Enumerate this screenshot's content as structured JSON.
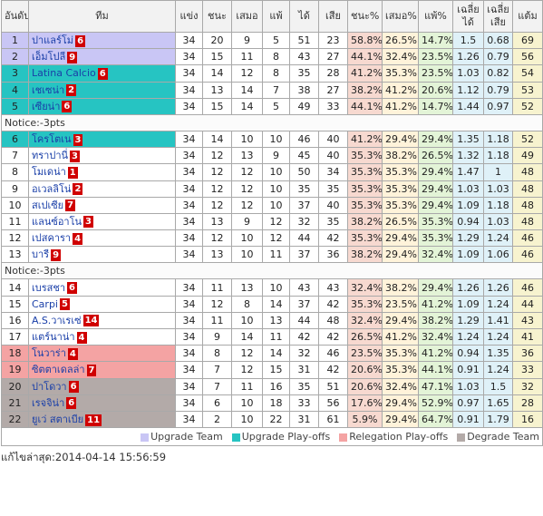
{
  "headers": {
    "rank": "อันดับ",
    "team": "ทีม",
    "played": "แข่ง",
    "won": "ชนะ",
    "drawn": "เสมอ",
    "lost": "แพ้",
    "gf": "ได้",
    "ga": "เสีย",
    "win_pct": "ชนะ%",
    "draw_pct": "เสมอ%",
    "loss_pct": "แพ้%",
    "avg_for": "เฉลี่ยได้",
    "avg_against": "เฉลี่ยเสีย",
    "points": "แต้ม"
  },
  "notice1": "Notice:-3pts",
  "notice2": "Notice:-3pts",
  "rows": [
    {
      "rank": "1",
      "team": "ปาแลร์โม่",
      "badge": "6",
      "p": "34",
      "w": "20",
      "d": "9",
      "l": "5",
      "gf": "51",
      "ga": "23",
      "wp": "58.8%",
      "dp": "26.5%",
      "lp": "14.7%",
      "af": "1.5",
      "aa": "0.68",
      "pts": "69",
      "zone": "upg"
    },
    {
      "rank": "2",
      "team": "เอ็มโปลี",
      "badge": "9",
      "p": "34",
      "w": "15",
      "d": "11",
      "l": "8",
      "gf": "43",
      "ga": "27",
      "wp": "44.1%",
      "dp": "32.4%",
      "lp": "23.5%",
      "af": "1.26",
      "aa": "0.79",
      "pts": "56",
      "zone": "upg"
    },
    {
      "rank": "3",
      "team": "Latina Calcio",
      "badge": "6",
      "p": "34",
      "w": "14",
      "d": "12",
      "l": "8",
      "gf": "35",
      "ga": "28",
      "wp": "41.2%",
      "dp": "35.3%",
      "lp": "23.5%",
      "af": "1.03",
      "aa": "0.82",
      "pts": "54",
      "zone": "pof"
    },
    {
      "rank": "4",
      "team": "เชเซน่า",
      "badge": "2",
      "p": "34",
      "w": "13",
      "d": "14",
      "l": "7",
      "gf": "38",
      "ga": "27",
      "wp": "38.2%",
      "dp": "41.2%",
      "lp": "20.6%",
      "af": "1.12",
      "aa": "0.79",
      "pts": "53",
      "zone": "pof"
    },
    {
      "rank": "5",
      "team": "เซียน่า",
      "badge": "6",
      "p": "34",
      "w": "15",
      "d": "14",
      "l": "5",
      "gf": "49",
      "ga": "33",
      "wp": "44.1%",
      "dp": "41.2%",
      "lp": "14.7%",
      "af": "1.44",
      "aa": "0.97",
      "pts": "52",
      "zone": "pof"
    },
    {
      "rank": "6",
      "team": "โครโตเน",
      "badge": "3",
      "p": "34",
      "w": "14",
      "d": "10",
      "l": "10",
      "gf": "46",
      "ga": "40",
      "wp": "41.2%",
      "dp": "29.4%",
      "lp": "29.4%",
      "af": "1.35",
      "aa": "1.18",
      "pts": "52",
      "zone": "pof"
    },
    {
      "rank": "7",
      "team": "ทราปานี่",
      "badge": "3",
      "p": "34",
      "w": "12",
      "d": "13",
      "l": "9",
      "gf": "45",
      "ga": "40",
      "wp": "35.3%",
      "dp": "38.2%",
      "lp": "26.5%",
      "af": "1.32",
      "aa": "1.18",
      "pts": "49",
      "zone": ""
    },
    {
      "rank": "8",
      "team": "โมเดน่า",
      "badge": "1",
      "p": "34",
      "w": "12",
      "d": "12",
      "l": "10",
      "gf": "50",
      "ga": "34",
      "wp": "35.3%",
      "dp": "35.3%",
      "lp": "29.4%",
      "af": "1.47",
      "aa": "1",
      "pts": "48",
      "zone": ""
    },
    {
      "rank": "9",
      "team": "อเวลลิโน่",
      "badge": "2",
      "p": "34",
      "w": "12",
      "d": "12",
      "l": "10",
      "gf": "35",
      "ga": "35",
      "wp": "35.3%",
      "dp": "35.3%",
      "lp": "29.4%",
      "af": "1.03",
      "aa": "1.03",
      "pts": "48",
      "zone": ""
    },
    {
      "rank": "10",
      "team": "สเปเซีย",
      "badge": "7",
      "p": "34",
      "w": "12",
      "d": "12",
      "l": "10",
      "gf": "37",
      "ga": "40",
      "wp": "35.3%",
      "dp": "35.3%",
      "lp": "29.4%",
      "af": "1.09",
      "aa": "1.18",
      "pts": "48",
      "zone": ""
    },
    {
      "rank": "11",
      "team": "แลนซ์อาโน",
      "badge": "3",
      "p": "34",
      "w": "13",
      "d": "9",
      "l": "12",
      "gf": "32",
      "ga": "35",
      "wp": "38.2%",
      "dp": "26.5%",
      "lp": "35.3%",
      "af": "0.94",
      "aa": "1.03",
      "pts": "48",
      "zone": ""
    },
    {
      "rank": "12",
      "team": "เปสคารา",
      "badge": "4",
      "p": "34",
      "w": "12",
      "d": "10",
      "l": "12",
      "gf": "44",
      "ga": "42",
      "wp": "35.3%",
      "dp": "29.4%",
      "lp": "35.3%",
      "af": "1.29",
      "aa": "1.24",
      "pts": "46",
      "zone": ""
    },
    {
      "rank": "13",
      "team": "บารี",
      "badge": "9",
      "p": "34",
      "w": "13",
      "d": "10",
      "l": "11",
      "gf": "37",
      "ga": "36",
      "wp": "38.2%",
      "dp": "29.4%",
      "lp": "32.4%",
      "af": "1.09",
      "aa": "1.06",
      "pts": "46",
      "zone": ""
    },
    {
      "rank": "14",
      "team": "เบรสชา",
      "badge": "6",
      "p": "34",
      "w": "11",
      "d": "13",
      "l": "10",
      "gf": "43",
      "ga": "43",
      "wp": "32.4%",
      "dp": "38.2%",
      "lp": "29.4%",
      "af": "1.26",
      "aa": "1.26",
      "pts": "46",
      "zone": ""
    },
    {
      "rank": "15",
      "team": "Carpi",
      "badge": "5",
      "p": "34",
      "w": "12",
      "d": "8",
      "l": "14",
      "gf": "37",
      "ga": "42",
      "wp": "35.3%",
      "dp": "23.5%",
      "lp": "41.2%",
      "af": "1.09",
      "aa": "1.24",
      "pts": "44",
      "zone": ""
    },
    {
      "rank": "16",
      "team": "A.S.วาเรเซ่",
      "badge": "14",
      "p": "34",
      "w": "11",
      "d": "10",
      "l": "13",
      "gf": "44",
      "ga": "48",
      "wp": "32.4%",
      "dp": "29.4%",
      "lp": "38.2%",
      "af": "1.29",
      "aa": "1.41",
      "pts": "43",
      "zone": ""
    },
    {
      "rank": "17",
      "team": "แตร์นาน่า",
      "badge": "4",
      "p": "34",
      "w": "9",
      "d": "14",
      "l": "11",
      "gf": "42",
      "ga": "42",
      "wp": "26.5%",
      "dp": "41.2%",
      "lp": "32.4%",
      "af": "1.24",
      "aa": "1.24",
      "pts": "41",
      "zone": ""
    },
    {
      "rank": "18",
      "team": "โนวาร่า",
      "badge": "4",
      "p": "34",
      "w": "8",
      "d": "12",
      "l": "14",
      "gf": "32",
      "ga": "46",
      "wp": "23.5%",
      "dp": "35.3%",
      "lp": "41.2%",
      "af": "0.94",
      "aa": "1.35",
      "pts": "36",
      "zone": "rel"
    },
    {
      "rank": "19",
      "team": "ซิตตาเดลล่า",
      "badge": "7",
      "p": "34",
      "w": "7",
      "d": "12",
      "l": "15",
      "gf": "31",
      "ga": "42",
      "wp": "20.6%",
      "dp": "35.3%",
      "lp": "44.1%",
      "af": "0.91",
      "aa": "1.24",
      "pts": "33",
      "zone": "rel"
    },
    {
      "rank": "20",
      "team": "ปาโดวา",
      "badge": "6",
      "p": "34",
      "w": "7",
      "d": "11",
      "l": "16",
      "gf": "35",
      "ga": "51",
      "wp": "20.6%",
      "dp": "32.4%",
      "lp": "47.1%",
      "af": "1.03",
      "aa": "1.5",
      "pts": "32",
      "zone": "deg"
    },
    {
      "rank": "21",
      "team": "เรจจิน่า",
      "badge": "6",
      "p": "34",
      "w": "6",
      "d": "10",
      "l": "18",
      "gf": "33",
      "ga": "56",
      "wp": "17.6%",
      "dp": "29.4%",
      "lp": "52.9%",
      "af": "0.97",
      "aa": "1.65",
      "pts": "28",
      "zone": "deg"
    },
    {
      "rank": "22",
      "team": "ยูเว่ สตาเบีย",
      "badge": "11",
      "p": "34",
      "w": "2",
      "d": "10",
      "l": "22",
      "gf": "31",
      "ga": "61",
      "wp": "5.9%",
      "dp": "29.4%",
      "lp": "64.7%",
      "af": "0.91",
      "aa": "1.79",
      "pts": "16",
      "zone": "deg"
    }
  ],
  "legend": [
    {
      "label": "Upgrade Team",
      "color": "#c9c6f5"
    },
    {
      "label": "Upgrade Play-offs",
      "color": "#26c4c2"
    },
    {
      "label": "Relegation Play-offs",
      "color": "#f4a3a3"
    },
    {
      "label": "Degrade Team",
      "color": "#b3aaa8"
    }
  ],
  "updated": "แก้ไขล่าสุด:2014-04-14 15:56:59"
}
